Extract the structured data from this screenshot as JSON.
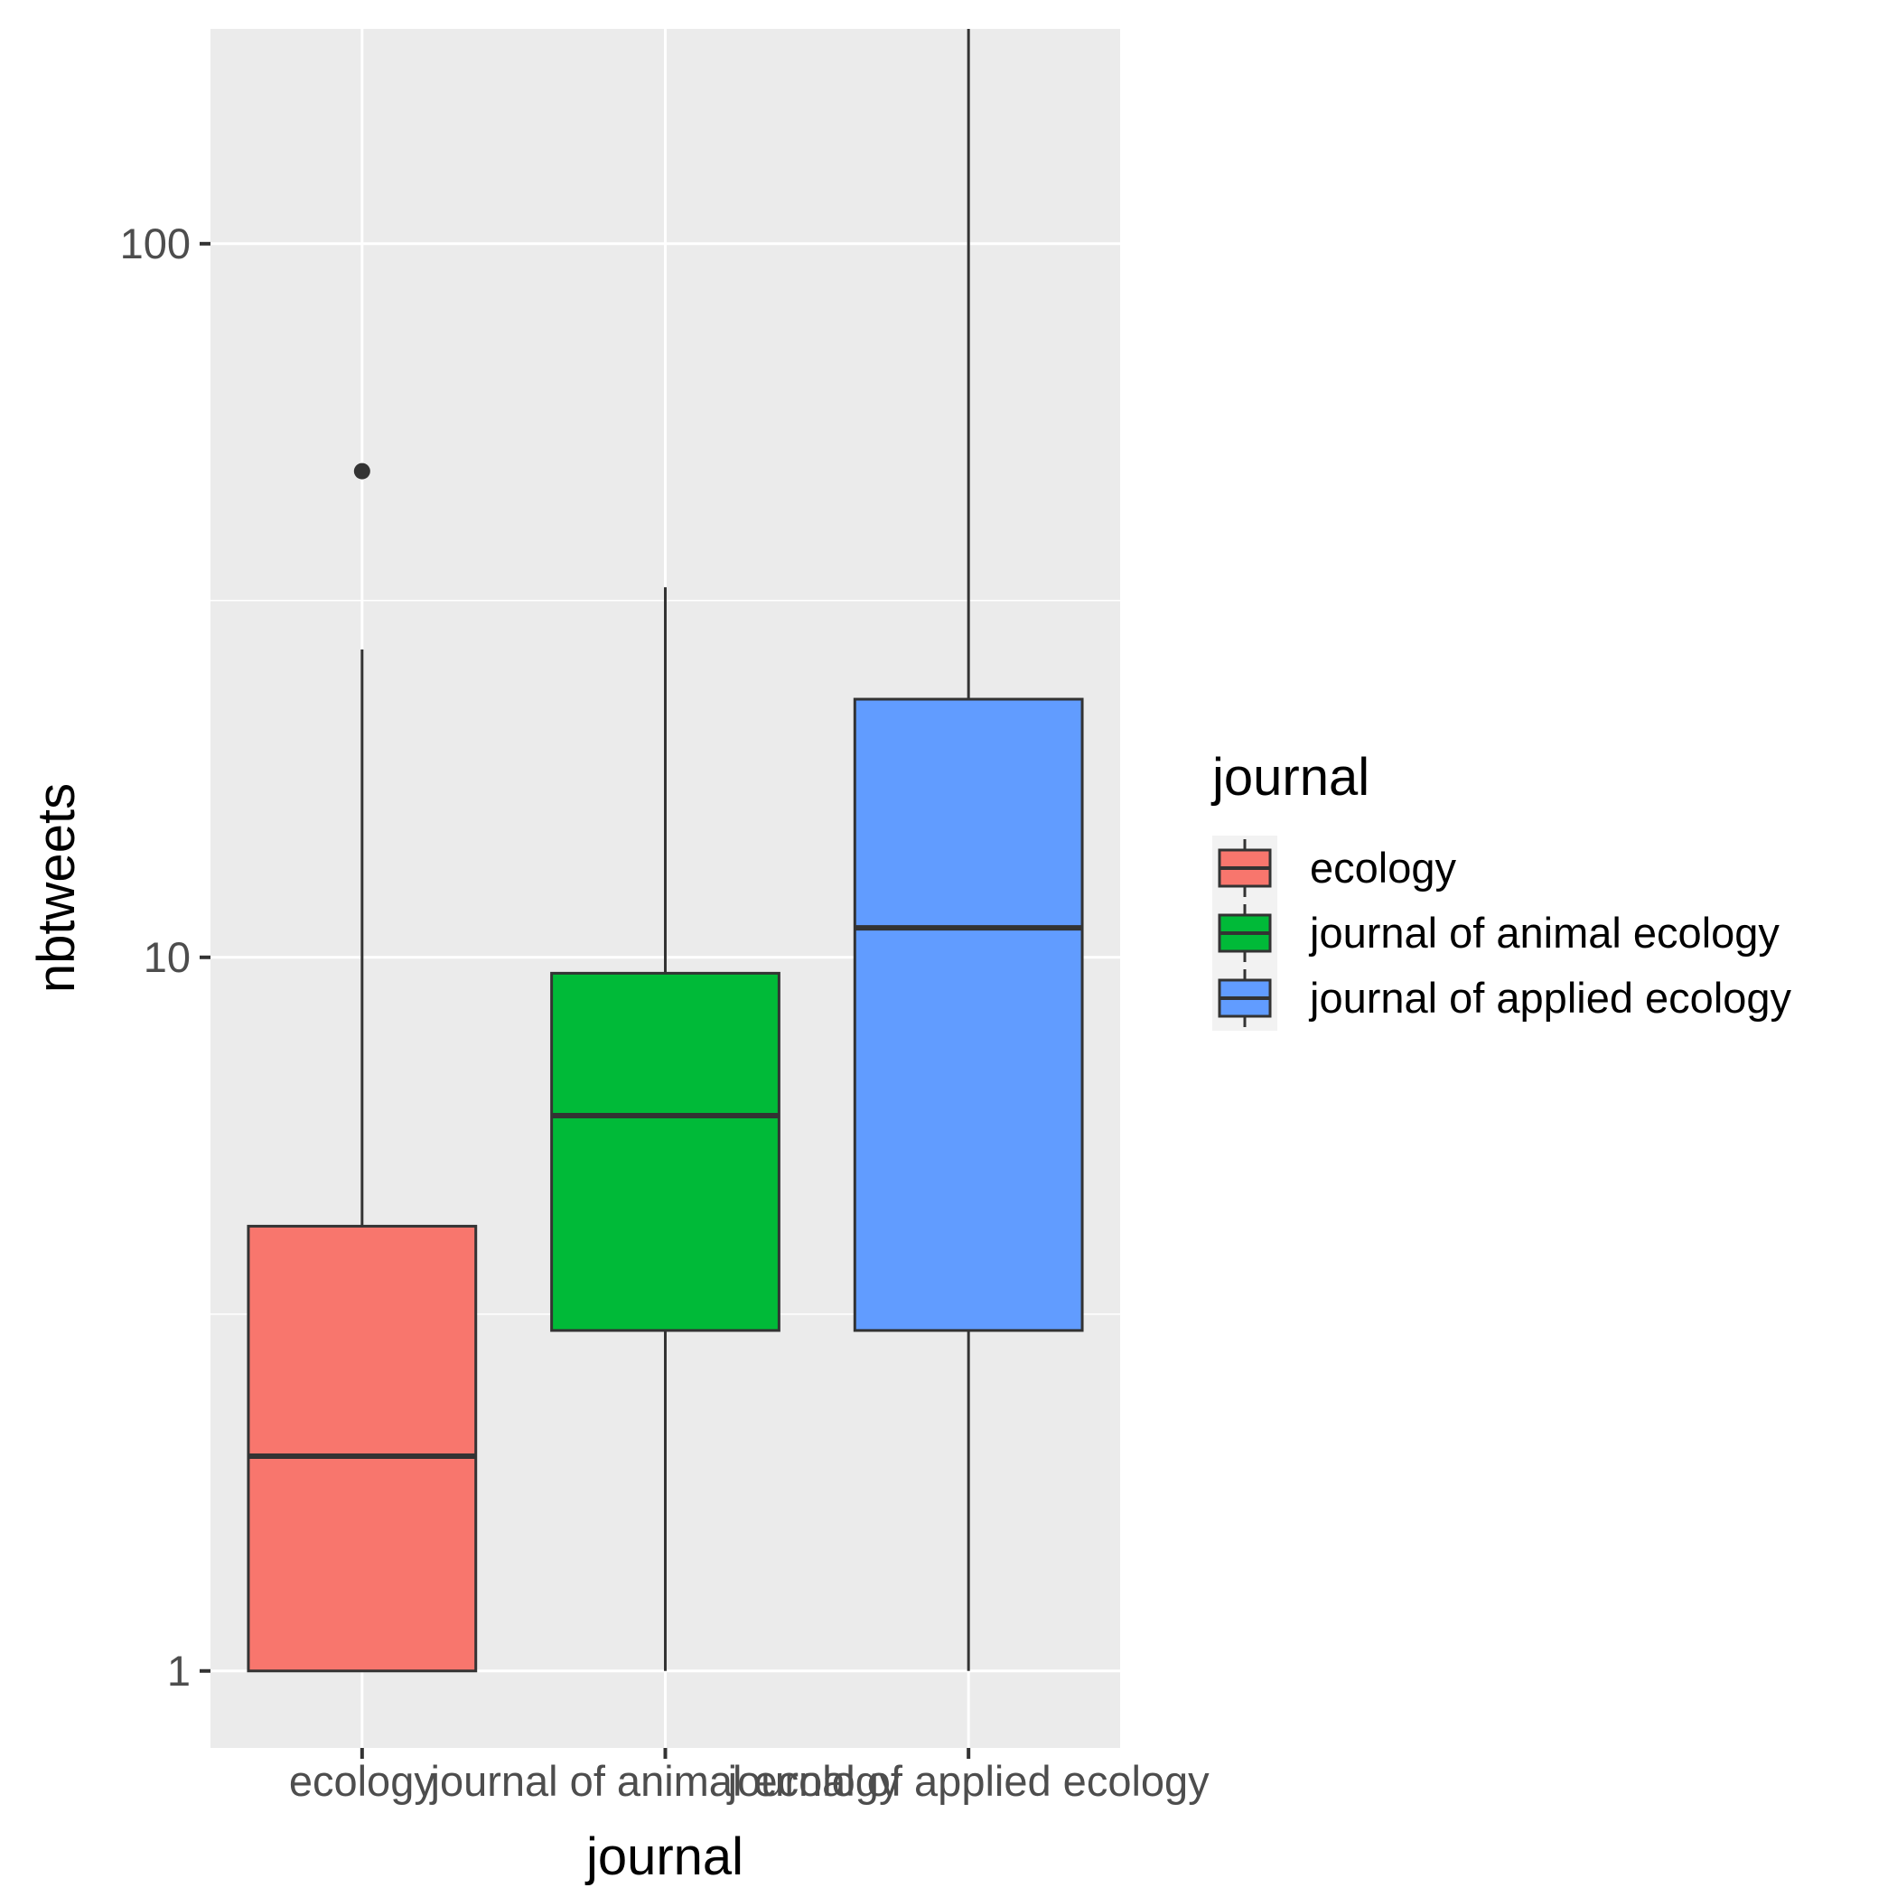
{
  "chart_data": {
    "type": "box",
    "xlabel": "journal",
    "ylabel": "nbtweets",
    "y_scale": "log10",
    "ylim": [
      0.78,
      200
    ],
    "y_ticks": [
      1,
      10,
      100
    ],
    "y_tick_labels": [
      "1",
      "10",
      "100"
    ],
    "categories": [
      "ecology",
      "journal of animal ecology",
      "journal of applied ecology"
    ],
    "series": [
      {
        "name": "ecology",
        "color": "#F8766D",
        "whisker_low": 1,
        "q1": 1,
        "median": 2,
        "q3": 4.2,
        "whisker_high": 27,
        "outliers": [
          48
        ]
      },
      {
        "name": "journal of animal ecology",
        "color": "#00BA38",
        "whisker_low": 1,
        "q1": 3,
        "median": 6,
        "q3": 9.5,
        "whisker_high": 33,
        "outliers": []
      },
      {
        "name": "journal of applied ecology",
        "color": "#619CFF",
        "whisker_low": 1,
        "q1": 3,
        "median": 11,
        "q3": 23,
        "whisker_high": 200,
        "outliers": []
      }
    ],
    "legend": {
      "title": "journal",
      "position": "right"
    },
    "grid": true
  }
}
